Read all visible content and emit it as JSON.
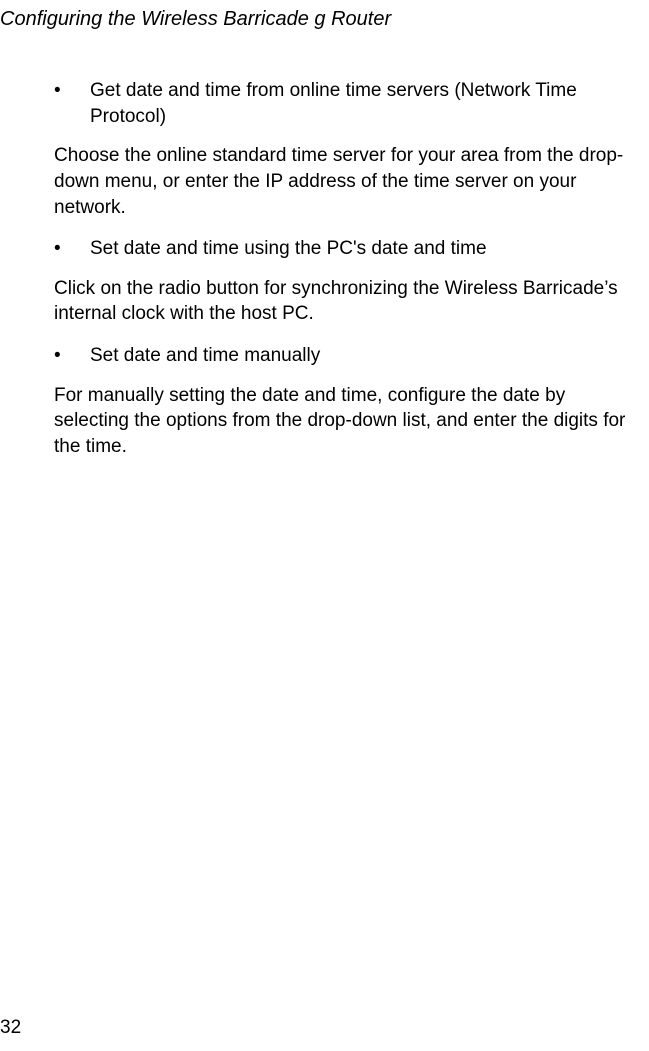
{
  "header": {
    "title": "Configuring the Wireless Barricade g Router"
  },
  "content": {
    "bullet1": "Get date and time from online time servers (Network Time Protocol)",
    "para1": "Choose the online standard time server for your area from the drop-down menu, or enter the IP address of the time server on your network.",
    "bullet2": "Set date and time using the PC's date and time",
    "para2": "Click on the radio button for synchronizing the Wireless Barricade’s internal clock with the host PC.",
    "bullet3": "Set date and time manually",
    "para3": "For manually setting the date and time, configure the date by selecting the options from the drop-down list, and enter the digits for the time."
  },
  "footer": {
    "page_number": "32"
  },
  "bullet_char": "•"
}
